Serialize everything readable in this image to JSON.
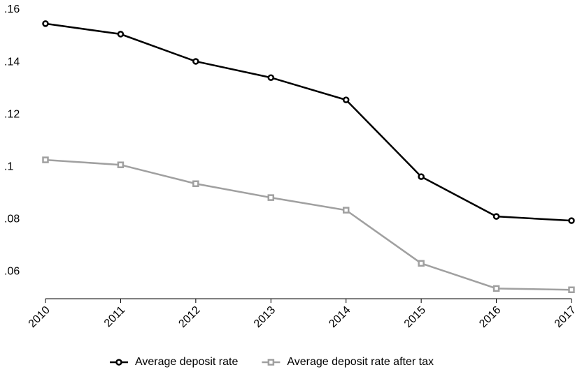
{
  "chart_data": {
    "type": "line",
    "x": [
      2010,
      2011,
      2012,
      2013,
      2014,
      2015,
      2016,
      2017
    ],
    "xlim": [
      2010,
      2017
    ],
    "xticks": [
      2010,
      2011,
      2012,
      2013,
      2014,
      2015,
      2016,
      2017
    ],
    "ylim": [
      0.0497,
      0.16
    ],
    "yticks": [
      {
        "value": 0.06,
        "label": ".06"
      },
      {
        "value": 0.08,
        "label": ".08"
      },
      {
        "value": 0.1,
        "label": ".1"
      },
      {
        "value": 0.12,
        "label": ".12"
      },
      {
        "value": 0.14,
        "label": ".14"
      },
      {
        "value": 0.16,
        "label": ".16"
      }
    ],
    "legend": "bottom",
    "series": [
      {
        "name": "Average deposit rate",
        "color": "#000000",
        "marker": "circle",
        "values": [
          0.1547,
          0.1507,
          0.1403,
          0.1341,
          0.1256,
          0.0963,
          0.0811,
          0.0795
        ]
      },
      {
        "name": "Average deposit rate after tax",
        "color": "#a0a0a0",
        "marker": "square",
        "values": [
          0.1027,
          0.1008,
          0.0936,
          0.0883,
          0.0835,
          0.0632,
          0.0536,
          0.0531
        ]
      }
    ]
  }
}
